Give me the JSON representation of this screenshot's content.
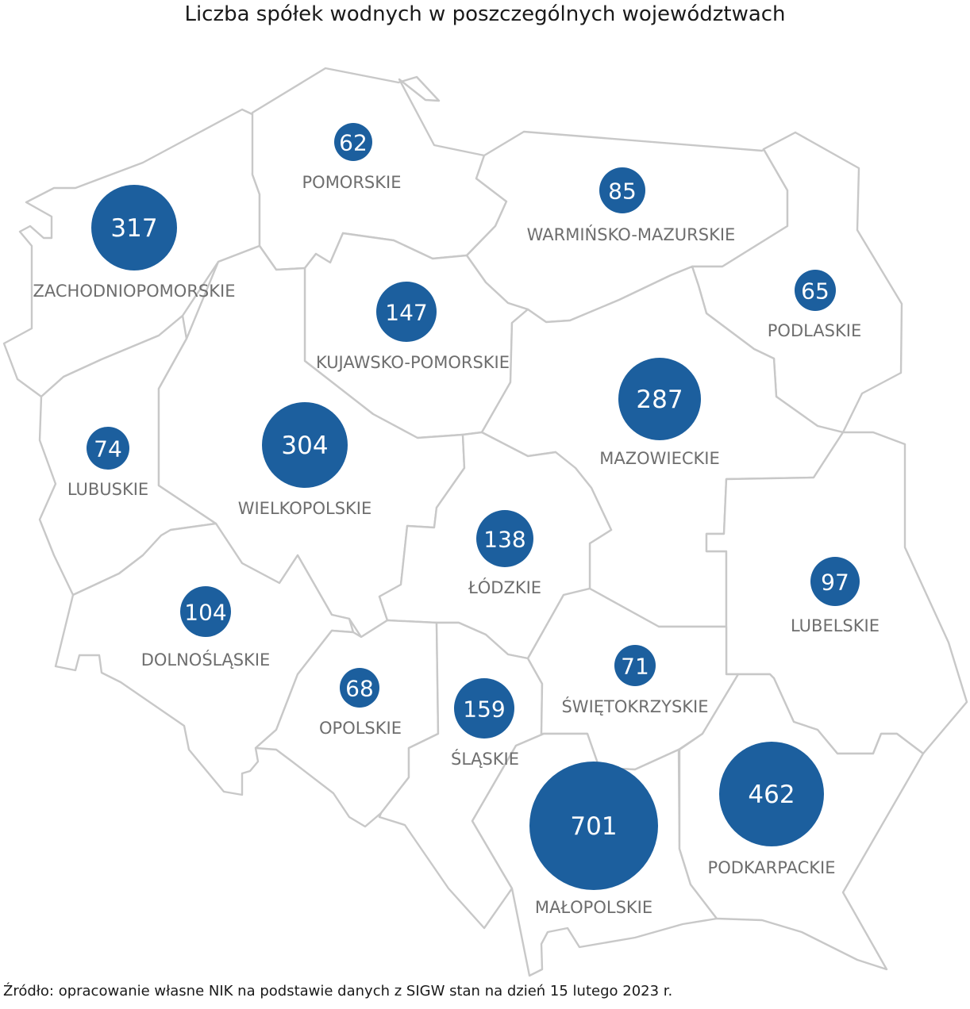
{
  "title": "Liczba spółek wodnych w poszczególnych województwach",
  "source": "Źródło: opracowanie własne NIK na podstawie danych z SIGW stan na dzień 15 lutego 2023 r.",
  "colors": {
    "bubble": "#1c5f9e",
    "border": "#c8c8c8",
    "label": "#6e6e6e"
  },
  "regions": [
    {
      "name": "ZACHODNIOPOMORSKIE",
      "value": "317"
    },
    {
      "name": "POMORSKIE",
      "value": "62"
    },
    {
      "name": "WARMIŃSKO-MAZURSKIE",
      "value": "85"
    },
    {
      "name": "PODLASKIE",
      "value": "65"
    },
    {
      "name": "KUJAWSKO-POMORSKIE",
      "value": "147"
    },
    {
      "name": "LUBUSKIE",
      "value": "74"
    },
    {
      "name": "WIELKOPOLSKIE",
      "value": "304"
    },
    {
      "name": "MAZOWIECKIE",
      "value": "287"
    },
    {
      "name": "ŁÓDZKIE",
      "value": "138"
    },
    {
      "name": "LUBELSKIE",
      "value": "97"
    },
    {
      "name": "DOLNOŚLĄSKIE",
      "value": "104"
    },
    {
      "name": "OPOLSKIE",
      "value": "68"
    },
    {
      "name": "ŚLĄSKIE",
      "value": "159"
    },
    {
      "name": "ŚWIĘTOKRZYSKIE",
      "value": "71"
    },
    {
      "name": "MAŁOPOLSKIE",
      "value": "701"
    },
    {
      "name": "PODKARPACKIE",
      "value": "462"
    }
  ]
}
